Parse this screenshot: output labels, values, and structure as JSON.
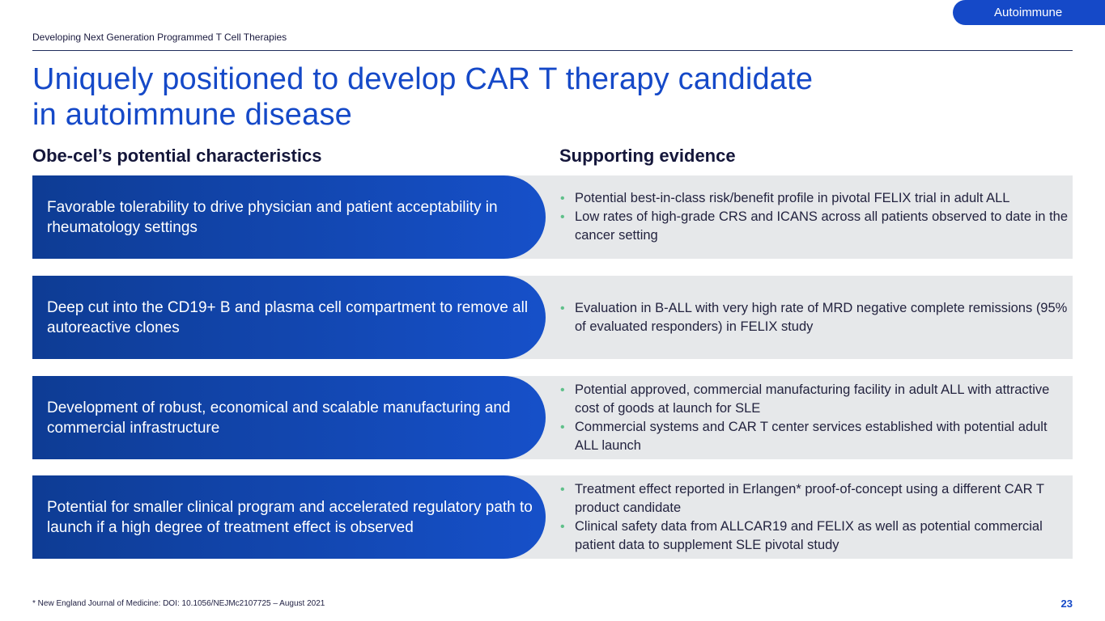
{
  "tag": "Autoimmune",
  "section_label": "Developing Next Generation Programmed T Cell Therapies",
  "title_line1": "Uniquely positioned to develop CAR T therapy candidate",
  "title_line2": "in autoimmune disease",
  "columns": {
    "left": "Obe-cel’s potential characteristics",
    "right": "Supporting evidence"
  },
  "rows": [
    {
      "characteristic": "Favorable tolerability to drive physician and patient acceptability in rheumatology settings",
      "evidence": [
        "Potential best-in-class risk/benefit profile in pivotal FELIX trial in adult ALL",
        "Low rates of high-grade CRS and ICANS across all patients observed to date in the cancer setting"
      ]
    },
    {
      "characteristic": "Deep cut into the CD19+ B and plasma cell compartment to remove all autoreactive clones",
      "evidence": [
        "Evaluation in B-ALL with very high rate of MRD negative complete remissions (95% of evaluated responders) in FELIX study"
      ]
    },
    {
      "characteristic": "Development of robust, economical and scalable manufacturing and commercial infrastructure",
      "evidence": [
        "Potential approved, commercial manufacturing facility in adult ALL with attractive cost of goods at launch for SLE",
        "Commercial systems and CAR T center services established with potential adult ALL launch"
      ]
    },
    {
      "characteristic": "Potential for smaller clinical program and accelerated regulatory path to launch if a high degree of treatment effect is observed",
      "evidence": [
        "Treatment effect reported in Erlangen* proof-of-concept using a different CAR T product candidate",
        "Clinical safety data from ALLCAR19 and FELIX as well as potential commercial patient data to supplement SLE pivotal study"
      ]
    }
  ],
  "bullet_glyph": "•",
  "footnote": "* New England Journal of Medicine: DOI: 10.1056/NEJMc2107725 – August 2021",
  "page_number": "23",
  "colors": {
    "brand_blue": "#1549c8",
    "dark_navy": "#0e3c94",
    "bullet_green": "#5fc08a",
    "evidence_bg": "#e6e8ea"
  }
}
